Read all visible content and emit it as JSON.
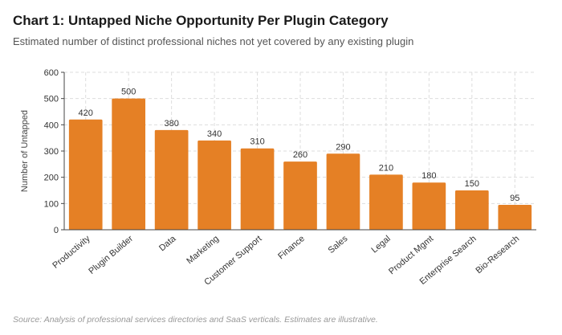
{
  "title": "Chart 1: Untapped Niche Opportunity Per Plugin Category",
  "subtitle": "Estimated number of distinct professional niches not yet covered by any existing plugin",
  "source": "Source: Analysis of professional services directories and SaaS verticals. Estimates are illustrative.",
  "colors": {
    "bar": "#E58025",
    "grid": "#dddddd",
    "axis": "#444444"
  },
  "chart_data": {
    "type": "bar",
    "ylabel": "Number of Untapped",
    "xlabel": "",
    "ylim": [
      0,
      600
    ],
    "yticks": [
      0,
      100,
      200,
      300,
      400,
      500,
      600
    ],
    "grid": true,
    "categories": [
      "Productivity",
      "Plugin Builder",
      "Data",
      "Marketing",
      "Customer Support",
      "Finance",
      "Sales",
      "Legal",
      "Product Mgmt",
      "Enterprise Search",
      "Bio-Research"
    ],
    "values": [
      420,
      500,
      380,
      340,
      310,
      260,
      290,
      210,
      180,
      150,
      95
    ]
  }
}
